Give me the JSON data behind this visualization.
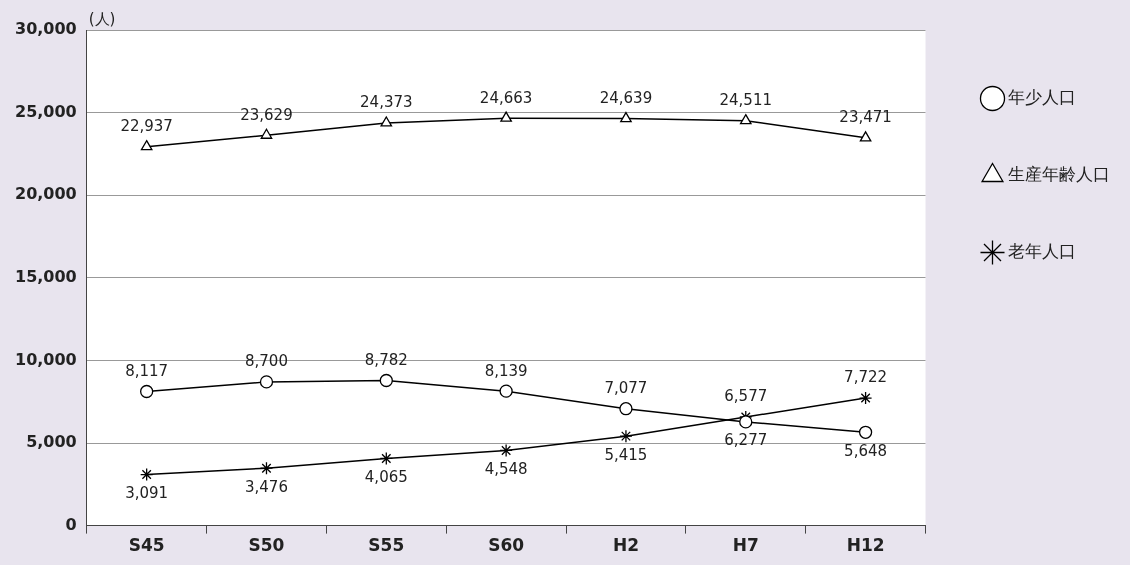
{
  "chart_data": {
    "type": "line",
    "ylabel": "(人)",
    "categories": [
      "S45",
      "S50",
      "S55",
      "S60",
      "H2",
      "H7",
      "H12"
    ],
    "series": [
      {
        "name": "年少人口",
        "color": "#000000",
        "marker": "circle",
        "values": [
          8117,
          8700,
          8782,
          8139,
          7077,
          6277,
          5648
        ],
        "value_labels": [
          "8,117",
          "8,700",
          "8,782",
          "8,139",
          "7,077",
          "6,277",
          "5,648"
        ]
      },
      {
        "name": "生産年齢人口",
        "color": "#000000",
        "marker": "triangle",
        "values": [
          22937,
          23629,
          24373,
          24663,
          24639,
          24511,
          23471
        ],
        "value_labels": [
          "22,937",
          "23,629",
          "24,373",
          "24,663",
          "24,639",
          "24,511",
          "23,471"
        ]
      },
      {
        "name": "老年人口",
        "color": "#000000",
        "marker": "cross",
        "values": [
          3091,
          3476,
          4065,
          4548,
          5415,
          6577,
          7722
        ],
        "value_labels": [
          "3,091",
          "3,476",
          "4,065",
          "4,548",
          "5,415",
          "6,577",
          "7,722"
        ]
      }
    ],
    "ylim": [
      0,
      30000
    ],
    "yticks": [
      {
        "value": 0,
        "label": "0"
      },
      {
        "value": 5000,
        "label": "5,000"
      },
      {
        "value": 10000,
        "label": "10,000"
      },
      {
        "value": 15000,
        "label": "15,000"
      },
      {
        "value": 20000,
        "label": "20,000"
      },
      {
        "value": 25000,
        "label": "25,000"
      },
      {
        "value": 30000,
        "label": "30,000"
      }
    ],
    "grid": "y",
    "legend": "right",
    "line_style": "solid"
  }
}
